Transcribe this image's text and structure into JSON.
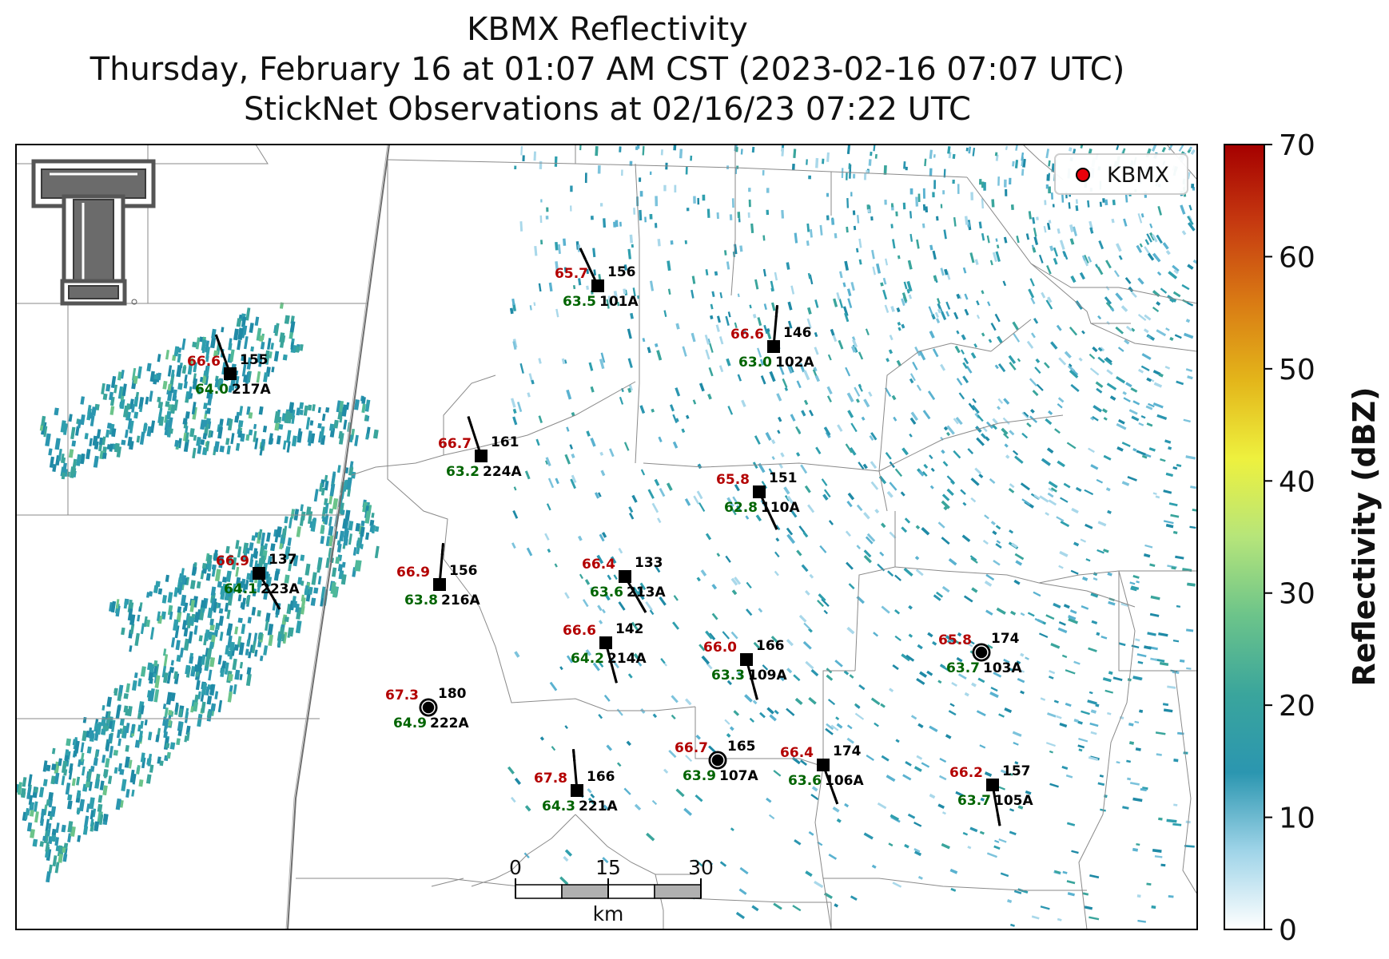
{
  "titles": {
    "line1": "KBMX Reflectivity",
    "line2": "Thursday, February 16 at 01:07 AM CST (2023-02-16 07:07 UTC)",
    "line3": "StickNet Observations at 02/16/23 07:22 UTC"
  },
  "legend": {
    "label": "KBMX",
    "marker_color": "#e8000b"
  },
  "colorbar": {
    "label": "Reflectivity (dBZ)",
    "min": 0,
    "max": 70,
    "ticks": [
      "0",
      "10",
      "20",
      "30",
      "40",
      "50",
      "60",
      "70"
    ],
    "colors": [
      "#ffffff",
      "#9fd4e8",
      "#2b96b0",
      "#3aa59c",
      "#6cc48a",
      "#b6e57a",
      "#eef13e",
      "#e3b51a",
      "#d97a14",
      "#c63a10",
      "#a50000"
    ]
  },
  "scale_bar": {
    "labels": [
      "0",
      "15",
      "30"
    ],
    "unit": "km"
  },
  "station_colors": {
    "temperature": "#b30000",
    "dewpoint": "#006400",
    "other": "#000000"
  },
  "stations": [
    {
      "id": "101A",
      "temp": "65.7",
      "dew": "63.5",
      "value": "156",
      "marker": "square"
    },
    {
      "id": "102A",
      "temp": "66.6",
      "dew": "63.0",
      "value": "146",
      "marker": "square"
    },
    {
      "id": "217A",
      "temp": "66.6",
      "dew": "64.0",
      "value": "155",
      "marker": "square"
    },
    {
      "id": "224A",
      "temp": "66.7",
      "dew": "63.2",
      "value": "161",
      "marker": "square"
    },
    {
      "id": "110A",
      "temp": "65.8",
      "dew": "62.8",
      "value": "151",
      "marker": "square"
    },
    {
      "id": "223A",
      "temp": "66.9",
      "dew": "64.1",
      "value": "137",
      "marker": "square"
    },
    {
      "id": "216A",
      "temp": "66.9",
      "dew": "63.8",
      "value": "156",
      "marker": "square"
    },
    {
      "id": "213A",
      "temp": "66.4",
      "dew": "63.6",
      "value": "133",
      "marker": "square"
    },
    {
      "id": "214A",
      "temp": "66.6",
      "dew": "64.2",
      "value": "142",
      "marker": "square"
    },
    {
      "id": "109A",
      "temp": "66.0",
      "dew": "63.3",
      "value": "166",
      "marker": "square"
    },
    {
      "id": "103A",
      "temp": "65.8",
      "dew": "63.7",
      "value": "174",
      "marker": "circle"
    },
    {
      "id": "222A",
      "temp": "67.3",
      "dew": "64.9",
      "value": "180",
      "marker": "circle"
    },
    {
      "id": "107A",
      "temp": "66.7",
      "dew": "63.9",
      "value": "165",
      "marker": "circle"
    },
    {
      "id": "106A",
      "temp": "66.4",
      "dew": "63.6",
      "value": "174",
      "marker": "square"
    },
    {
      "id": "221A",
      "temp": "67.8",
      "dew": "64.3",
      "value": "166",
      "marker": "square"
    },
    {
      "id": "105A",
      "temp": "66.2",
      "dew": "63.7",
      "value": "157",
      "marker": "square"
    }
  ]
}
